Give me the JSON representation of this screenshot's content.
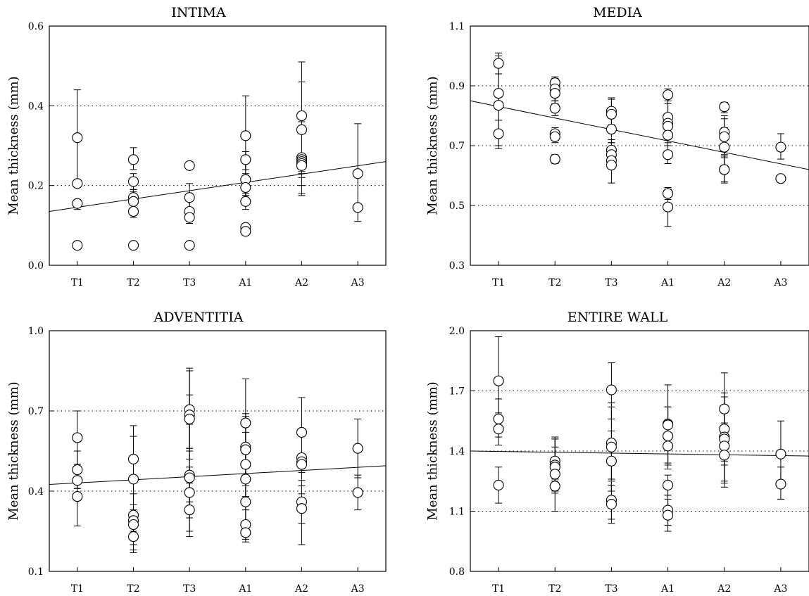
{
  "ylabel": "Mean thickness (mm)",
  "chart_data": [
    {
      "type": "scatter",
      "title": "INTIMA",
      "ylabel": "Mean thickness (mm)",
      "categories": [
        "T1",
        "T2",
        "T3",
        "A1",
        "A2",
        "A3"
      ],
      "ylim": [
        0.0,
        0.6
      ],
      "yticks": [
        "0.0",
        "0.2",
        "0.4",
        "0.6"
      ],
      "grid": "dotted horizontal",
      "trendline": [
        0.135,
        0.26
      ],
      "points": [
        {
          "x": "T1",
          "y": 0.32,
          "lo": 0.21,
          "hi": 0.44
        },
        {
          "x": "T1",
          "y": 0.205,
          "lo": 0.195,
          "hi": 0.215
        },
        {
          "x": "T1",
          "y": 0.155,
          "lo": 0.14,
          "hi": 0.165
        },
        {
          "x": "T1",
          "y": 0.05,
          "lo": 0.045,
          "hi": 0.055
        },
        {
          "x": "T2",
          "y": 0.265,
          "lo": 0.24,
          "hi": 0.295
        },
        {
          "x": "T2",
          "y": 0.21,
          "lo": 0.19,
          "hi": 0.23
        },
        {
          "x": "T2",
          "y": 0.17,
          "lo": 0.155,
          "hi": 0.19
        },
        {
          "x": "T2",
          "y": 0.16,
          "lo": 0.125,
          "hi": 0.185
        },
        {
          "x": "T2",
          "y": 0.135,
          "lo": 0.12,
          "hi": 0.15
        },
        {
          "x": "T2",
          "y": 0.05,
          "lo": 0.045,
          "hi": 0.055
        },
        {
          "x": "T3",
          "y": 0.25,
          "lo": 0.245,
          "hi": 0.255
        },
        {
          "x": "T3",
          "y": 0.17,
          "lo": 0.135,
          "hi": 0.205
        },
        {
          "x": "T3",
          "y": 0.135,
          "lo": 0.12,
          "hi": 0.175
        },
        {
          "x": "T3",
          "y": 0.12,
          "lo": 0.105,
          "hi": 0.14
        },
        {
          "x": "T3",
          "y": 0.05,
          "lo": 0.048,
          "hi": 0.052
        },
        {
          "x": "A1",
          "y": 0.325,
          "lo": 0.23,
          "hi": 0.425
        },
        {
          "x": "A1",
          "y": 0.265,
          "lo": 0.24,
          "hi": 0.285
        },
        {
          "x": "A1",
          "y": 0.215,
          "lo": 0.175,
          "hi": 0.255
        },
        {
          "x": "A1",
          "y": 0.195,
          "lo": 0.175,
          "hi": 0.215
        },
        {
          "x": "A1",
          "y": 0.16,
          "lo": 0.14,
          "hi": 0.18
        },
        {
          "x": "A1",
          "y": 0.095,
          "lo": 0.09,
          "hi": 0.1
        },
        {
          "x": "A1",
          "y": 0.085,
          "lo": 0.08,
          "hi": 0.09
        },
        {
          "x": "A2",
          "y": 0.375,
          "lo": 0.24,
          "hi": 0.51
        },
        {
          "x": "A2",
          "y": 0.34,
          "lo": 0.22,
          "hi": 0.46
        },
        {
          "x": "A2",
          "y": 0.27,
          "lo": 0.18,
          "hi": 0.36
        },
        {
          "x": "A2",
          "y": 0.265,
          "lo": 0.2,
          "hi": 0.33
        },
        {
          "x": "A2",
          "y": 0.26,
          "lo": 0.175,
          "hi": 0.345
        },
        {
          "x": "A2",
          "y": 0.255,
          "lo": 0.235,
          "hi": 0.275
        },
        {
          "x": "A2",
          "y": 0.25,
          "lo": 0.23,
          "hi": 0.27
        },
        {
          "x": "A3",
          "y": 0.23,
          "lo": 0.11,
          "hi": 0.355
        },
        {
          "x": "A3",
          "y": 0.145,
          "lo": 0.14,
          "hi": 0.15
        }
      ]
    },
    {
      "type": "scatter",
      "title": "MEDIA",
      "ylabel": "Mean thickness (mm)",
      "categories": [
        "T1",
        "T2",
        "T3",
        "A1",
        "A2",
        "A3"
      ],
      "ylim": [
        0.3,
        1.1
      ],
      "yticks": [
        "0.3",
        "0.5",
        "0.7",
        "0.9",
        "1.1"
      ],
      "grid": "dotted horizontal",
      "trendline": [
        0.85,
        0.62
      ],
      "points": [
        {
          "x": "T1",
          "y": 0.975,
          "lo": 0.94,
          "hi": 1.01
        },
        {
          "x": "T1",
          "y": 0.875,
          "lo": 0.73,
          "hi": 1.0
        },
        {
          "x": "T1",
          "y": 0.835,
          "lo": 0.7,
          "hi": 0.975
        },
        {
          "x": "T1",
          "y": 0.74,
          "lo": 0.69,
          "hi": 0.785
        },
        {
          "x": "T2",
          "y": 0.91,
          "lo": 0.88,
          "hi": 0.925
        },
        {
          "x": "T2",
          "y": 0.89,
          "lo": 0.85,
          "hi": 0.93
        },
        {
          "x": "T2",
          "y": 0.875,
          "lo": 0.84,
          "hi": 0.91
        },
        {
          "x": "T2",
          "y": 0.825,
          "lo": 0.8,
          "hi": 0.85
        },
        {
          "x": "T2",
          "y": 0.74,
          "lo": 0.72,
          "hi": 0.76
        },
        {
          "x": "T2",
          "y": 0.73,
          "lo": 0.71,
          "hi": 0.75
        },
        {
          "x": "T2",
          "y": 0.655,
          "lo": 0.64,
          "hi": 0.67
        },
        {
          "x": "T3",
          "y": 0.815,
          "lo": 0.77,
          "hi": 0.86
        },
        {
          "x": "T3",
          "y": 0.805,
          "lo": 0.75,
          "hi": 0.855
        },
        {
          "x": "T3",
          "y": 0.755,
          "lo": 0.71,
          "hi": 0.8
        },
        {
          "x": "T3",
          "y": 0.685,
          "lo": 0.65,
          "hi": 0.72
        },
        {
          "x": "T3",
          "y": 0.67,
          "lo": 0.625,
          "hi": 0.71
        },
        {
          "x": "T3",
          "y": 0.65,
          "lo": 0.625,
          "hi": 0.675
        },
        {
          "x": "T3",
          "y": 0.635,
          "lo": 0.575,
          "hi": 0.695
        },
        {
          "x": "A1",
          "y": 0.87,
          "lo": 0.85,
          "hi": 0.89
        },
        {
          "x": "A1",
          "y": 0.795,
          "lo": 0.73,
          "hi": 0.86
        },
        {
          "x": "A1",
          "y": 0.775,
          "lo": 0.71,
          "hi": 0.84
        },
        {
          "x": "A1",
          "y": 0.765,
          "lo": 0.73,
          "hi": 0.8
        },
        {
          "x": "A1",
          "y": 0.735,
          "lo": 0.7,
          "hi": 0.77
        },
        {
          "x": "A1",
          "y": 0.67,
          "lo": 0.64,
          "hi": 0.7
        },
        {
          "x": "A1",
          "y": 0.54,
          "lo": 0.52,
          "hi": 0.56
        },
        {
          "x": "A1",
          "y": 0.495,
          "lo": 0.43,
          "hi": 0.555
        },
        {
          "x": "A2",
          "y": 0.83,
          "lo": 0.81,
          "hi": 0.845
        },
        {
          "x": "A2",
          "y": 0.745,
          "lo": 0.69,
          "hi": 0.8
        },
        {
          "x": "A2",
          "y": 0.73,
          "lo": 0.67,
          "hi": 0.79
        },
        {
          "x": "A2",
          "y": 0.695,
          "lo": 0.63,
          "hi": 0.76
        },
        {
          "x": "A2",
          "y": 0.62,
          "lo": 0.58,
          "hi": 0.665
        },
        {
          "x": "A2",
          "y": 0.62,
          "lo": 0.575,
          "hi": 0.66
        },
        {
          "x": "A3",
          "y": 0.695,
          "lo": 0.655,
          "hi": 0.74
        },
        {
          "x": "A3",
          "y": 0.59,
          "lo": 0.585,
          "hi": 0.595
        }
      ]
    },
    {
      "type": "scatter",
      "title": "ADVENTITIA",
      "ylabel": "Mean thickness (mm)",
      "categories": [
        "T1",
        "T2",
        "T3",
        "A1",
        "A2",
        "A3"
      ],
      "ylim": [
        0.1,
        1.0
      ],
      "yticks": [
        "0.1",
        "0.4",
        "0.7",
        "1.0"
      ],
      "grid": "dotted horizontal",
      "trendline": [
        0.425,
        0.495
      ],
      "points": [
        {
          "x": "T1",
          "y": 0.6,
          "lo": 0.5,
          "hi": 0.7
        },
        {
          "x": "T1",
          "y": 0.48,
          "lo": 0.41,
          "hi": 0.55
        },
        {
          "x": "T1",
          "y": 0.44,
          "lo": 0.41,
          "hi": 0.47
        },
        {
          "x": "T1",
          "y": 0.38,
          "lo": 0.27,
          "hi": 0.5
        },
        {
          "x": "T2",
          "y": 0.52,
          "lo": 0.39,
          "hi": 0.645
        },
        {
          "x": "T2",
          "y": 0.445,
          "lo": 0.28,
          "hi": 0.605
        },
        {
          "x": "T2",
          "y": 0.31,
          "lo": 0.18,
          "hi": 0.44
        },
        {
          "x": "T2",
          "y": 0.29,
          "lo": 0.25,
          "hi": 0.33
        },
        {
          "x": "T2",
          "y": 0.275,
          "lo": 0.2,
          "hi": 0.35
        },
        {
          "x": "T2",
          "y": 0.23,
          "lo": 0.17,
          "hi": 0.29
        },
        {
          "x": "T3",
          "y": 0.705,
          "lo": 0.55,
          "hi": 0.86
        },
        {
          "x": "T3",
          "y": 0.685,
          "lo": 0.52,
          "hi": 0.85
        },
        {
          "x": "T3",
          "y": 0.67,
          "lo": 0.56,
          "hi": 0.76
        },
        {
          "x": "T3",
          "y": 0.46,
          "lo": 0.36,
          "hi": 0.56
        },
        {
          "x": "T3",
          "y": 0.45,
          "lo": 0.25,
          "hi": 0.65
        },
        {
          "x": "T3",
          "y": 0.395,
          "lo": 0.3,
          "hi": 0.49
        },
        {
          "x": "T3",
          "y": 0.33,
          "lo": 0.23,
          "hi": 0.43
        },
        {
          "x": "A1",
          "y": 0.655,
          "lo": 0.49,
          "hi": 0.82
        },
        {
          "x": "A1",
          "y": 0.565,
          "lo": 0.44,
          "hi": 0.69
        },
        {
          "x": "A1",
          "y": 0.555,
          "lo": 0.42,
          "hi": 0.68
        },
        {
          "x": "A1",
          "y": 0.5,
          "lo": 0.38,
          "hi": 0.62
        },
        {
          "x": "A1",
          "y": 0.445,
          "lo": 0.33,
          "hi": 0.56
        },
        {
          "x": "A1",
          "y": 0.36,
          "lo": 0.26,
          "hi": 0.46
        },
        {
          "x": "A1",
          "y": 0.275,
          "lo": 0.22,
          "hi": 0.33
        },
        {
          "x": "A1",
          "y": 0.245,
          "lo": 0.21,
          "hi": 0.28
        },
        {
          "x": "A2",
          "y": 0.62,
          "lo": 0.5,
          "hi": 0.75
        },
        {
          "x": "A2",
          "y": 0.525,
          "lo": 0.42,
          "hi": 0.63
        },
        {
          "x": "A2",
          "y": 0.51,
          "lo": 0.39,
          "hi": 0.63
        },
        {
          "x": "A2",
          "y": 0.5,
          "lo": 0.37,
          "hi": 0.63
        },
        {
          "x": "A2",
          "y": 0.36,
          "lo": 0.28,
          "hi": 0.44
        },
        {
          "x": "A2",
          "y": 0.335,
          "lo": 0.2,
          "hi": 0.47
        },
        {
          "x": "A3",
          "y": 0.56,
          "lo": 0.45,
          "hi": 0.67
        },
        {
          "x": "A3",
          "y": 0.395,
          "lo": 0.33,
          "hi": 0.46
        }
      ]
    },
    {
      "type": "scatter",
      "title": "ENTIRE WALL",
      "ylabel": "Mean thickness (mm)",
      "categories": [
        "T1",
        "T2",
        "T3",
        "A1",
        "A2",
        "A3"
      ],
      "ylim": [
        0.8,
        2.0
      ],
      "yticks": [
        "0.8",
        "1.1",
        "1.4",
        "1.7",
        "2.0"
      ],
      "grid": "dotted horizontal",
      "trendline": [
        1.4,
        1.375
      ],
      "points": [
        {
          "x": "T1",
          "y": 1.75,
          "lo": 1.52,
          "hi": 1.97
        },
        {
          "x": "T1",
          "y": 1.56,
          "lo": 1.47,
          "hi": 1.66
        },
        {
          "x": "T1",
          "y": 1.51,
          "lo": 1.43,
          "hi": 1.59
        },
        {
          "x": "T1",
          "y": 1.23,
          "lo": 1.14,
          "hi": 1.32
        },
        {
          "x": "T2",
          "y": 1.35,
          "lo": 1.25,
          "hi": 1.46
        },
        {
          "x": "T2",
          "y": 1.33,
          "lo": 1.2,
          "hi": 1.46
        },
        {
          "x": "T2",
          "y": 1.32,
          "lo": 1.22,
          "hi": 1.42
        },
        {
          "x": "T2",
          "y": 1.285,
          "lo": 1.1,
          "hi": 1.47
        },
        {
          "x": "T2",
          "y": 1.225,
          "lo": 1.19,
          "hi": 1.26
        },
        {
          "x": "T3",
          "y": 1.705,
          "lo": 1.56,
          "hi": 1.84
        },
        {
          "x": "T3",
          "y": 1.44,
          "lo": 1.26,
          "hi": 1.62
        },
        {
          "x": "T3",
          "y": 1.42,
          "lo": 1.2,
          "hi": 1.64
        },
        {
          "x": "T3",
          "y": 1.35,
          "lo": 1.2,
          "hi": 1.5
        },
        {
          "x": "T3",
          "y": 1.155,
          "lo": 1.06,
          "hi": 1.25
        },
        {
          "x": "T3",
          "y": 1.135,
          "lo": 1.04,
          "hi": 1.23
        },
        {
          "x": "A1",
          "y": 1.535,
          "lo": 1.34,
          "hi": 1.73
        },
        {
          "x": "A1",
          "y": 1.53,
          "lo": 1.44,
          "hi": 1.62
        },
        {
          "x": "A1",
          "y": 1.475,
          "lo": 1.33,
          "hi": 1.62
        },
        {
          "x": "A1",
          "y": 1.425,
          "lo": 1.31,
          "hi": 1.54
        },
        {
          "x": "A1",
          "y": 1.23,
          "lo": 1.18,
          "hi": 1.28
        },
        {
          "x": "A1",
          "y": 1.105,
          "lo": 1.03,
          "hi": 1.18
        },
        {
          "x": "A1",
          "y": 1.08,
          "lo": 1.0,
          "hi": 1.16
        },
        {
          "x": "A2",
          "y": 1.61,
          "lo": 1.43,
          "hi": 1.79
        },
        {
          "x": "A2",
          "y": 1.51,
          "lo": 1.33,
          "hi": 1.69
        },
        {
          "x": "A2",
          "y": 1.47,
          "lo": 1.35,
          "hi": 1.59
        },
        {
          "x": "A2",
          "y": 1.46,
          "lo": 1.25,
          "hi": 1.67
        },
        {
          "x": "A2",
          "y": 1.425,
          "lo": 1.24,
          "hi": 1.61
        },
        {
          "x": "A2",
          "y": 1.38,
          "lo": 1.22,
          "hi": 1.54
        },
        {
          "x": "A3",
          "y": 1.385,
          "lo": 1.22,
          "hi": 1.55
        },
        {
          "x": "A3",
          "y": 1.235,
          "lo": 1.16,
          "hi": 1.32
        }
      ]
    }
  ]
}
